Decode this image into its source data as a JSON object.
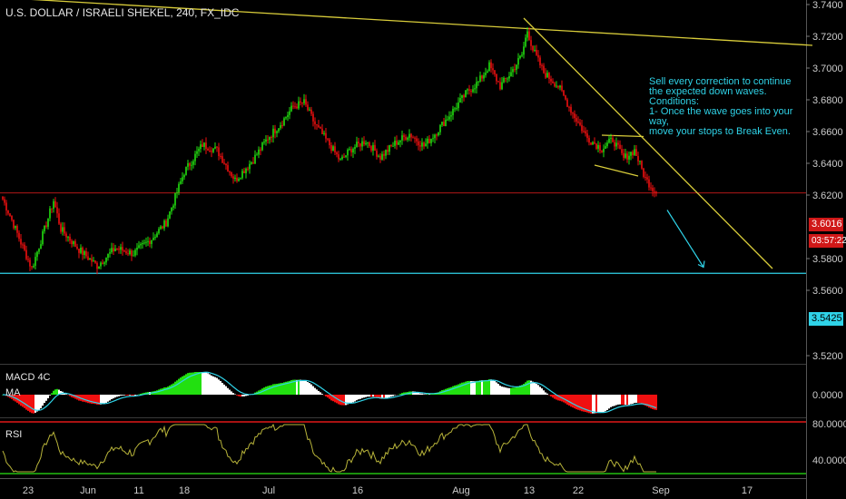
{
  "header": {
    "title": "U.S. DOLLAR / ISRAELI SHEKEL, 240, FX_IDC"
  },
  "annotation": {
    "text": "Sell every correction to continue\nthe expected down waves.\nConditions:\n1- Once the wave goes into your way,\nmove your stops to Break Even."
  },
  "price_axis": {
    "ticks": [
      "3.7400",
      "3.7200",
      "3.7000",
      "3.6800",
      "3.6600",
      "3.6400",
      "3.6200",
      "3.5800",
      "3.5600",
      "3.5200"
    ],
    "current_price": "3.6016",
    "countdown": "03:57:22",
    "support_price": "3.5425"
  },
  "macd_panel": {
    "label": "MACD 4C",
    "sub_label": "MA",
    "tick": "0.0000"
  },
  "rsi_panel": {
    "label": "RSI",
    "ticks": [
      "80.0000",
      "40.0000"
    ]
  },
  "time_axis": {
    "labels": [
      "23",
      "Jun",
      "11",
      "18",
      "Jul",
      "16",
      "Aug",
      "13",
      "22",
      "Sep",
      "17"
    ]
  },
  "colors": {
    "background": "#000000",
    "bull": "#22e010",
    "bear": "#f01010",
    "trendline": "#d8cc3a",
    "support": "#2fd3e8",
    "current_line": "#b01818",
    "rsi_line": "#b8b43a",
    "rsi_upper": "#e01818",
    "rsi_lower": "#22c010",
    "macd_signal": "#2fd3e8"
  },
  "chart_data": {
    "type": "candlestick",
    "symbol": "U.S. DOLLAR / ISRAELI SHEKEL",
    "interval": "240",
    "price_range": [
      3.51,
      3.745
    ],
    "last_close": 3.6016,
    "support_level": 3.5425,
    "waypoints": [
      [
        0,
        3.597
      ],
      [
        4,
        3.585
      ],
      [
        10,
        3.565
      ],
      [
        16,
        3.546
      ],
      [
        24,
        3.579
      ],
      [
        28,
        3.596
      ],
      [
        32,
        3.575
      ],
      [
        42,
        3.56
      ],
      [
        52,
        3.548
      ],
      [
        62,
        3.561
      ],
      [
        72,
        3.557
      ],
      [
        82,
        3.568
      ],
      [
        90,
        3.58
      ],
      [
        100,
        3.617
      ],
      [
        110,
        3.637
      ],
      [
        118,
        3.633
      ],
      [
        128,
        3.611
      ],
      [
        138,
        3.626
      ],
      [
        146,
        3.642
      ],
      [
        154,
        3.654
      ],
      [
        160,
        3.665
      ],
      [
        166,
        3.668
      ],
      [
        172,
        3.652
      ],
      [
        180,
        3.637
      ],
      [
        186,
        3.625
      ],
      [
        192,
        3.634
      ],
      [
        200,
        3.64
      ],
      [
        208,
        3.628
      ],
      [
        216,
        3.638
      ],
      [
        224,
        3.645
      ],
      [
        232,
        3.636
      ],
      [
        238,
        3.645
      ],
      [
        248,
        3.662
      ],
      [
        256,
        3.676
      ],
      [
        262,
        3.683
      ],
      [
        268,
        3.695
      ],
      [
        274,
        3.68
      ],
      [
        280,
        3.69
      ],
      [
        286,
        3.703
      ],
      [
        289,
        3.721
      ],
      [
        292,
        3.707
      ],
      [
        298,
        3.69
      ],
      [
        306,
        3.68
      ],
      [
        314,
        3.66
      ],
      [
        322,
        3.642
      ],
      [
        330,
        3.634
      ],
      [
        336,
        3.641
      ],
      [
        342,
        3.627
      ],
      [
        348,
        3.633
      ],
      [
        354,
        3.612
      ],
      [
        360,
        3.6016
      ]
    ],
    "trendlines": [
      {
        "name": "upper",
        "from": [
          0,
          3.745
        ],
        "to": [
          446,
          3.71
        ]
      },
      {
        "name": "descending",
        "from": [
          287,
          3.73
        ],
        "to": [
          424,
          3.546
        ]
      },
      {
        "name": "flag-top",
        "from": [
          330,
          3.644
        ],
        "to": [
          353,
          3.643
        ]
      },
      {
        "name": "flag-bottom",
        "from": [
          326,
          3.622
        ],
        "to": [
          350,
          3.614
        ]
      }
    ],
    "projection_arrow": {
      "from": [
        366,
        3.589
      ],
      "to": [
        386,
        3.547
      ]
    },
    "macd": {
      "zero_tick": "0.0000"
    },
    "rsi": {
      "levels": [
        80,
        30
      ],
      "labeled_ticks": [
        "80.0000",
        "40.0000"
      ]
    }
  }
}
